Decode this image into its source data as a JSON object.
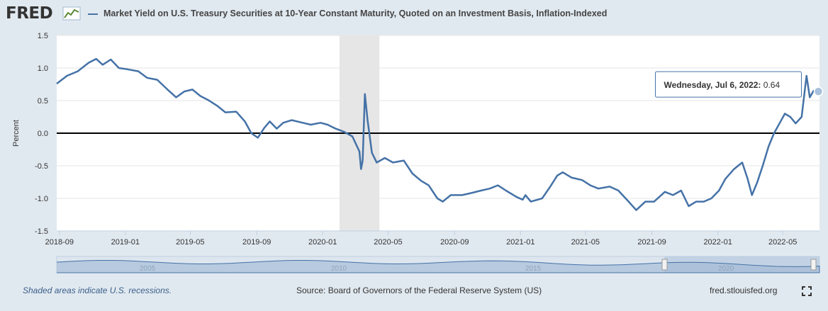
{
  "header": {
    "logo_text": "FRED",
    "series_title": "Market Yield on U.S. Treasury Securities at 10-Year Constant Maturity, Quoted on an Investment Basis, Inflation-Indexed"
  },
  "chart_data": {
    "type": "line",
    "ylabel": "Percent",
    "ylim": [
      -1.5,
      1.5
    ],
    "yticks": [
      "1.5",
      "1.0",
      "0.5",
      "0.0",
      "-0.5",
      "-1.0",
      "-1.5"
    ],
    "xlim": [
      "2018-08-27",
      "2022-07-08"
    ],
    "xticks": [
      {
        "date": "2018-09-01",
        "label": "2018-09"
      },
      {
        "date": "2019-01-01",
        "label": "2019-01"
      },
      {
        "date": "2019-05-01",
        "label": "2019-05"
      },
      {
        "date": "2019-09-01",
        "label": "2019-09"
      },
      {
        "date": "2020-01-01",
        "label": "2020-01"
      },
      {
        "date": "2020-05-01",
        "label": "2020-05"
      },
      {
        "date": "2020-09-01",
        "label": "2020-09"
      },
      {
        "date": "2021-01-01",
        "label": "2021-01"
      },
      {
        "date": "2021-05-01",
        "label": "2021-05"
      },
      {
        "date": "2021-09-01",
        "label": "2021-09"
      },
      {
        "date": "2022-01-01",
        "label": "2022-01"
      },
      {
        "date": "2022-05-01",
        "label": "2022-05"
      }
    ],
    "recession": {
      "start": "2020-02-01",
      "end": "2020-04-15"
    },
    "series": [
      {
        "points": [
          [
            "2018-08-27",
            0.76
          ],
          [
            "2018-09-15",
            0.88
          ],
          [
            "2018-10-05",
            0.95
          ],
          [
            "2018-10-25",
            1.08
          ],
          [
            "2018-11-08",
            1.14
          ],
          [
            "2018-11-20",
            1.05
          ],
          [
            "2018-12-05",
            1.13
          ],
          [
            "2018-12-20",
            1.0
          ],
          [
            "2019-01-05",
            0.98
          ],
          [
            "2019-01-25",
            0.95
          ],
          [
            "2019-02-10",
            0.85
          ],
          [
            "2019-03-01",
            0.82
          ],
          [
            "2019-03-20",
            0.67
          ],
          [
            "2019-04-05",
            0.55
          ],
          [
            "2019-04-20",
            0.64
          ],
          [
            "2019-05-05",
            0.67
          ],
          [
            "2019-05-20",
            0.57
          ],
          [
            "2019-06-03",
            0.51
          ],
          [
            "2019-06-20",
            0.42
          ],
          [
            "2019-07-05",
            0.32
          ],
          [
            "2019-07-25",
            0.33
          ],
          [
            "2019-08-10",
            0.18
          ],
          [
            "2019-08-22",
            0.0
          ],
          [
            "2019-09-03",
            -0.07
          ],
          [
            "2019-09-15",
            0.08
          ],
          [
            "2019-09-25",
            0.18
          ],
          [
            "2019-10-08",
            0.07
          ],
          [
            "2019-10-20",
            0.16
          ],
          [
            "2019-11-05",
            0.2
          ],
          [
            "2019-11-25",
            0.16
          ],
          [
            "2019-12-10",
            0.13
          ],
          [
            "2019-12-28",
            0.16
          ],
          [
            "2020-01-10",
            0.13
          ],
          [
            "2020-01-25",
            0.07
          ],
          [
            "2020-02-10",
            0.02
          ],
          [
            "2020-02-25",
            -0.05
          ],
          [
            "2020-03-09",
            -0.28
          ],
          [
            "2020-03-12",
            -0.55
          ],
          [
            "2020-03-15",
            -0.42
          ],
          [
            "2020-03-19",
            0.6
          ],
          [
            "2020-03-24",
            0.2
          ],
          [
            "2020-04-01",
            -0.3
          ],
          [
            "2020-04-10",
            -0.45
          ],
          [
            "2020-04-25",
            -0.38
          ],
          [
            "2020-05-10",
            -0.45
          ],
          [
            "2020-05-30",
            -0.42
          ],
          [
            "2020-06-15",
            -0.62
          ],
          [
            "2020-07-01",
            -0.73
          ],
          [
            "2020-07-15",
            -0.8
          ],
          [
            "2020-07-31",
            -1.0
          ],
          [
            "2020-08-10",
            -1.05
          ],
          [
            "2020-08-25",
            -0.95
          ],
          [
            "2020-09-15",
            -0.95
          ],
          [
            "2020-10-01",
            -0.92
          ],
          [
            "2020-10-20",
            -0.88
          ],
          [
            "2020-11-05",
            -0.85
          ],
          [
            "2020-11-20",
            -0.8
          ],
          [
            "2020-12-05",
            -0.88
          ],
          [
            "2020-12-25",
            -0.98
          ],
          [
            "2021-01-05",
            -1.02
          ],
          [
            "2021-01-10",
            -0.95
          ],
          [
            "2021-01-20",
            -1.05
          ],
          [
            "2021-02-10",
            -1.0
          ],
          [
            "2021-02-25",
            -0.82
          ],
          [
            "2021-03-10",
            -0.65
          ],
          [
            "2021-03-20",
            -0.6
          ],
          [
            "2021-04-05",
            -0.68
          ],
          [
            "2021-04-25",
            -0.72
          ],
          [
            "2021-05-10",
            -0.8
          ],
          [
            "2021-05-25",
            -0.85
          ],
          [
            "2021-06-15",
            -0.82
          ],
          [
            "2021-07-01",
            -0.88
          ],
          [
            "2021-07-20",
            -1.05
          ],
          [
            "2021-08-03",
            -1.18
          ],
          [
            "2021-08-20",
            -1.05
          ],
          [
            "2021-09-05",
            -1.05
          ],
          [
            "2021-09-25",
            -0.9
          ],
          [
            "2021-10-10",
            -0.95
          ],
          [
            "2021-10-25",
            -0.88
          ],
          [
            "2021-11-08",
            -1.12
          ],
          [
            "2021-11-22",
            -1.05
          ],
          [
            "2021-12-06",
            -1.05
          ],
          [
            "2021-12-20",
            -1.0
          ],
          [
            "2022-01-03",
            -0.88
          ],
          [
            "2022-01-15",
            -0.7
          ],
          [
            "2022-01-31",
            -0.55
          ],
          [
            "2022-02-15",
            -0.45
          ],
          [
            "2022-02-25",
            -0.7
          ],
          [
            "2022-03-05",
            -0.95
          ],
          [
            "2022-03-15",
            -0.75
          ],
          [
            "2022-03-25",
            -0.5
          ],
          [
            "2022-04-05",
            -0.2
          ],
          [
            "2022-04-15",
            0.0
          ],
          [
            "2022-04-25",
            0.15
          ],
          [
            "2022-05-05",
            0.3
          ],
          [
            "2022-05-15",
            0.25
          ],
          [
            "2022-05-25",
            0.15
          ],
          [
            "2022-06-05",
            0.25
          ],
          [
            "2022-06-14",
            0.88
          ],
          [
            "2022-06-20",
            0.55
          ],
          [
            "2022-06-27",
            0.65
          ],
          [
            "2022-07-06",
            0.64
          ]
        ]
      }
    ],
    "tooltip": {
      "date_label": "Wednesday, Jul 6, 2022:",
      "value": "0.64"
    },
    "navigator_ticks": [
      "2005",
      "2010",
      "2015",
      "2020"
    ]
  },
  "footer": {
    "recession_note": "Shaded areas indicate U.S. recessions.",
    "source": "Source: Board of Governors of the Federal Reserve System (US)",
    "site": "fred.stlouisfed.org"
  },
  "colors": {
    "line": "#4572a7",
    "background": "#e1e9f0",
    "plot": "#ffffff",
    "recession": "#e6e6e6"
  }
}
